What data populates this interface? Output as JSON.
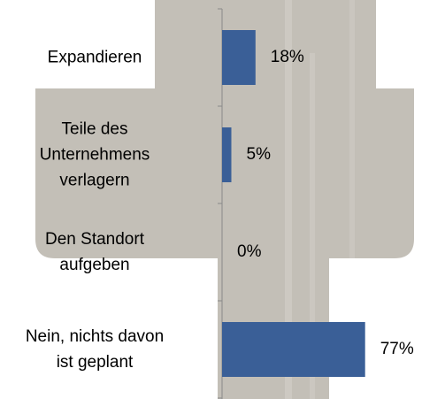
{
  "chart_data": {
    "type": "bar",
    "orientation": "horizontal",
    "categories": [
      "Expandieren",
      "Teile des\nUnternehmens\nverlagern",
      "Den Standort\naufgeben",
      "Nein, nichts davon\nist geplant"
    ],
    "values": [
      18,
      5,
      0,
      77
    ],
    "value_labels": [
      "18%",
      "5%",
      "0%",
      "77%"
    ],
    "color": "#3a5f97"
  }
}
